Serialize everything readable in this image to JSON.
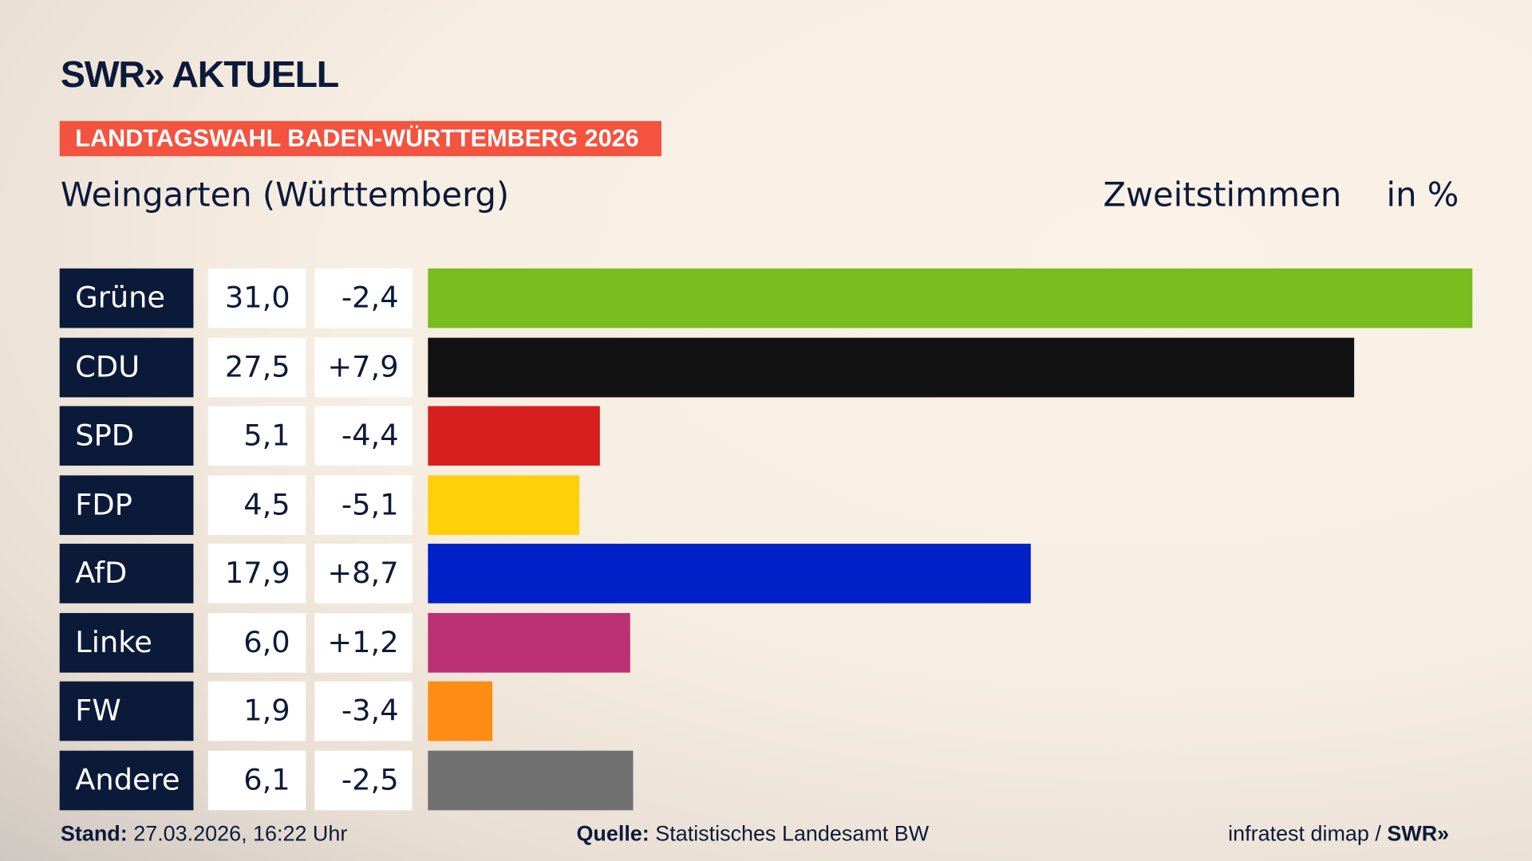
{
  "header": {
    "logo": "SWR» AKTUELL",
    "tag": "LANDTAGSWAHL BADEN-WÜRTTEMBERG 2026",
    "region": "Weingarten (Württemberg)",
    "vote_type": "Zweitstimmen",
    "unit": "in %"
  },
  "chart_data": {
    "type": "bar",
    "orientation": "horizontal",
    "xlim": [
      0,
      31
    ],
    "categories": [
      "Grüne",
      "CDU",
      "SPD",
      "FDP",
      "AfD",
      "Linke",
      "FW",
      "Andere"
    ],
    "values": [
      31.0,
      27.5,
      5.1,
      4.5,
      17.9,
      6.0,
      1.9,
      6.1
    ],
    "value_labels": [
      "31,0",
      "27,5",
      "5,1",
      "4,5",
      "17,9",
      "6,0",
      "1,9",
      "6,1"
    ],
    "change_labels": [
      "-2,4",
      "+7,9",
      "-4,4",
      "-5,1",
      "+8,7",
      "+1,2",
      "-3,4",
      "-2,5"
    ],
    "colors": [
      "#78bc1e",
      "#121212",
      "#d7201e",
      "#ffcf0a",
      "#0020c8",
      "#bc3175",
      "#ff8c14",
      "#707070"
    ]
  },
  "footer": {
    "stand_label": "Stand:",
    "stand_value": "27.03.2026, 16:22 Uhr",
    "source_label": "Quelle:",
    "source_value": "Statistisches Landesamt BW",
    "credit": "infratest dimap / ",
    "credit_logo": "SWR»"
  }
}
